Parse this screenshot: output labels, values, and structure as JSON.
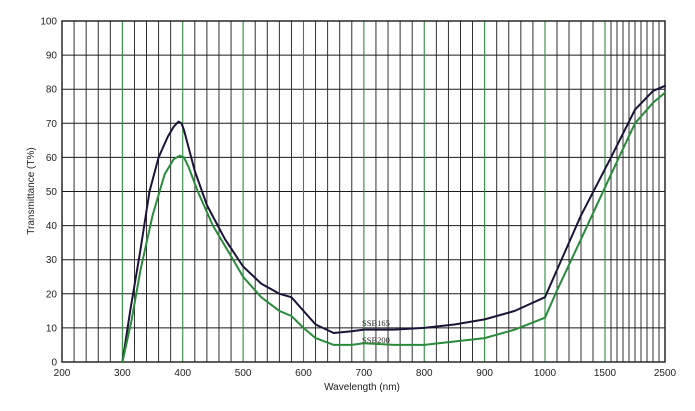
{
  "chart_data": {
    "type": "line",
    "title": "",
    "xlabel": "Wavelength (nm)",
    "ylabel": "Transmittance (T%)",
    "xscale": "reciprocal",
    "xlim": [
      200,
      2500
    ],
    "ylim": [
      0,
      100
    ],
    "xticks": [
      200,
      300,
      400,
      500,
      600,
      700,
      800,
      900,
      1000,
      1500,
      2500
    ],
    "yticks": [
      0,
      10,
      20,
      30,
      40,
      50,
      60,
      70,
      80,
      90,
      100
    ],
    "grid": true,
    "legend": "none",
    "colors": {
      "primary_grid": "#2e8b3e",
      "secondary_grid": "#1a1a1a",
      "axis": "#1a1a1a"
    },
    "series": [
      {
        "name": "SSB165",
        "color": "#1c1438",
        "x": [
          300,
          313,
          330,
          345,
          360,
          375,
          385,
          393,
          398,
          402,
          408,
          420,
          440,
          470,
          500,
          530,
          560,
          580,
          600,
          620,
          650,
          680,
          700,
          750,
          800,
          850,
          900,
          950,
          1000,
          1100,
          1300,
          1600,
          2000,
          2300,
          2500
        ],
        "y": [
          0,
          15,
          33,
          50,
          60,
          66,
          69,
          70.5,
          70,
          68,
          64,
          56,
          46,
          36,
          28,
          23,
          20,
          19,
          15,
          11,
          8.5,
          9,
          9.5,
          9.5,
          10,
          11,
          12.5,
          15,
          19,
          27,
          43,
          60,
          74,
          79.5,
          81
        ]
      },
      {
        "name": "SSB200",
        "color": "#2a8b3a",
        "x": [
          300,
          315,
          330,
          350,
          370,
          385,
          395,
          402,
          410,
          425,
          450,
          480,
          500,
          530,
          560,
          580,
          600,
          620,
          650,
          680,
          700,
          750,
          800,
          850,
          900,
          950,
          1000,
          1100,
          1300,
          1600,
          2000,
          2300,
          2500
        ],
        "y": [
          0,
          12,
          27,
          43,
          55,
          59.5,
          60.5,
          60,
          57,
          50,
          40,
          31,
          25,
          19,
          15,
          13.5,
          10,
          7,
          5,
          5,
          5.5,
          5,
          5,
          6,
          7,
          9.5,
          13,
          21,
          36,
          55,
          70,
          76,
          79
        ]
      }
    ],
    "annotations": [
      "SSB165",
      "SSB200"
    ]
  }
}
